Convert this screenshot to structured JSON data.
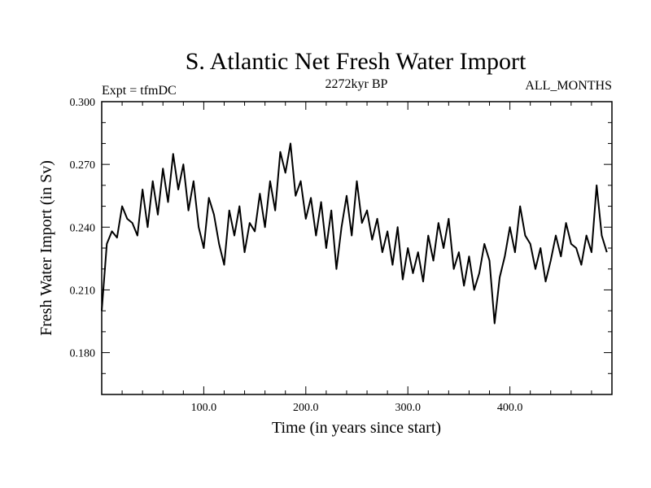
{
  "chart_data": {
    "type": "line",
    "title": "S. Atlantic Net Fresh Water Import",
    "subtitle_left": "Expt = tfmDC",
    "subtitle_center": "2272kyr BP",
    "subtitle_right": "ALL_MONTHS",
    "xlabel": "Time (in years since start)",
    "ylabel": "Fresh Water Import (in Sv)",
    "xlim": [
      0,
      500
    ],
    "ylim": [
      0.16,
      0.3
    ],
    "x_ticks": [
      100,
      200,
      300,
      400
    ],
    "x_tick_labels": [
      "100.0",
      "200.0",
      "300.0",
      "400.0"
    ],
    "y_ticks": [
      0.18,
      0.21,
      0.24,
      0.27,
      0.3
    ],
    "y_tick_labels": [
      "0.180",
      "0.210",
      "0.240",
      "0.270",
      "0.300"
    ],
    "grid": false,
    "series": [
      {
        "name": "net_fresh_water_import",
        "x_start": 0,
        "x_step": 5,
        "values": [
          0.2,
          0.232,
          0.238,
          0.235,
          0.25,
          0.244,
          0.242,
          0.236,
          0.258,
          0.24,
          0.262,
          0.246,
          0.268,
          0.252,
          0.275,
          0.258,
          0.27,
          0.248,
          0.262,
          0.24,
          0.23,
          0.254,
          0.246,
          0.232,
          0.222,
          0.248,
          0.236,
          0.25,
          0.228,
          0.242,
          0.238,
          0.256,
          0.24,
          0.262,
          0.248,
          0.276,
          0.266,
          0.28,
          0.255,
          0.262,
          0.244,
          0.254,
          0.236,
          0.252,
          0.23,
          0.248,
          0.22,
          0.24,
          0.255,
          0.236,
          0.262,
          0.242,
          0.248,
          0.234,
          0.244,
          0.228,
          0.238,
          0.222,
          0.24,
          0.215,
          0.23,
          0.218,
          0.228,
          0.214,
          0.236,
          0.224,
          0.242,
          0.23,
          0.244,
          0.22,
          0.228,
          0.212,
          0.226,
          0.21,
          0.218,
          0.232,
          0.224,
          0.194,
          0.216,
          0.226,
          0.24,
          0.228,
          0.25,
          0.236,
          0.232,
          0.22,
          0.23,
          0.214,
          0.224,
          0.236,
          0.226,
          0.242,
          0.232,
          0.23,
          0.222,
          0.236,
          0.228,
          0.26,
          0.236,
          0.228
        ]
      }
    ]
  }
}
